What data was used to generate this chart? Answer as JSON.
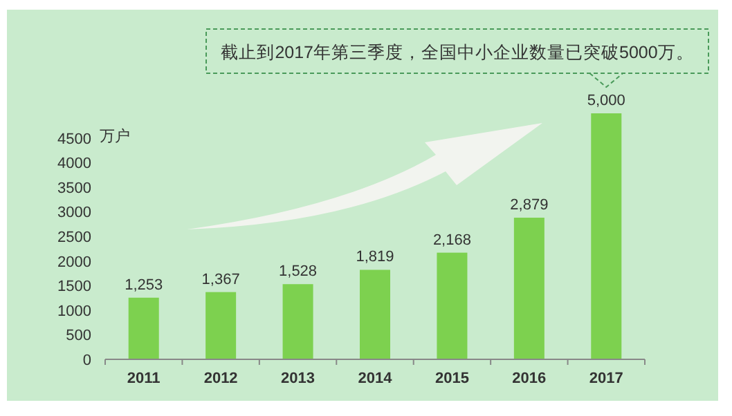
{
  "chart_data": {
    "type": "bar",
    "categories": [
      "2011",
      "2012",
      "2013",
      "2014",
      "2015",
      "2016",
      "2017"
    ],
    "values": [
      1253,
      1367,
      1528,
      1819,
      2168,
      2879,
      5000
    ],
    "color": "#7dd14f",
    "value_labels": [
      "1,253",
      "1,367",
      "1,528",
      "1,819",
      "2,168",
      "2,879",
      "5,000"
    ],
    "ylabel": "万户",
    "ylim": [
      0,
      5000
    ],
    "yticks": [
      0,
      500,
      1000,
      1500,
      2000,
      2500,
      3000,
      3500,
      4000,
      4500
    ],
    "annotations": [
      "截止到2017年第三季度，全国中小企业数量已突破5000万。"
    ],
    "grid": false
  }
}
